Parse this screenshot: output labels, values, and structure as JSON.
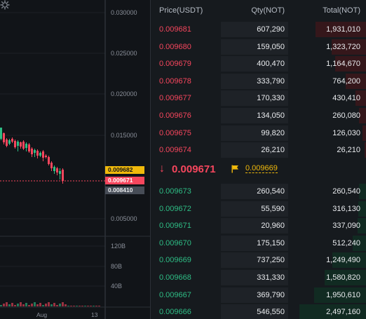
{
  "chart": {
    "price_axis": [
      "0.030000",
      "0.025000",
      "0.020000",
      "0.015000",
      "0.005000"
    ],
    "price_tags": [
      {
        "label": "0.009682",
        "bg": "#f0b90b",
        "fg": "#111418"
      },
      {
        "label": "0.009671",
        "bg": "#f6465d",
        "fg": "#ffffff"
      },
      {
        "label": "0.008410",
        "bg": "#474d57",
        "fg": "#eaecef"
      }
    ],
    "volume_axis": [
      "120B",
      "80B",
      "40B"
    ],
    "date_labels": [
      "Aug",
      "13"
    ],
    "settings_icon": "gear-icon"
  },
  "order_book": {
    "headers": {
      "price": "Price(USDT)",
      "qty": "Qty(NOT)",
      "total": "Total(NOT)"
    },
    "asks": [
      {
        "price": "0.009681",
        "qty": "607,290",
        "total": "1,931,010",
        "depth": 0.38
      },
      {
        "price": "0.009680",
        "qty": "159,050",
        "total": "1,323,720",
        "depth": 0.26
      },
      {
        "price": "0.009679",
        "qty": "400,470",
        "total": "1,164,670",
        "depth": 0.23
      },
      {
        "price": "0.009678",
        "qty": "333,790",
        "total": "764,200",
        "depth": 0.15
      },
      {
        "price": "0.009677",
        "qty": "170,330",
        "total": "430,410",
        "depth": 0.08
      },
      {
        "price": "0.009676",
        "qty": "134,050",
        "total": "260,080",
        "depth": 0.05
      },
      {
        "price": "0.009675",
        "qty": "99,820",
        "total": "126,030",
        "depth": 0.025
      },
      {
        "price": "0.009674",
        "qty": "26,210",
        "total": "26,210",
        "depth": 0.01
      }
    ],
    "mid": {
      "arrow": "↓",
      "last_price": "0.009671",
      "mark_price": "0.009669"
    },
    "bids": [
      {
        "price": "0.009673",
        "qty": "260,540",
        "total": "260,540",
        "depth": 0.05
      },
      {
        "price": "0.009672",
        "qty": "55,590",
        "total": "316,130",
        "depth": 0.06
      },
      {
        "price": "0.009671",
        "qty": "20,960",
        "total": "337,090",
        "depth": 0.065
      },
      {
        "price": "0.009670",
        "qty": "175,150",
        "total": "512,240",
        "depth": 0.1
      },
      {
        "price": "0.009669",
        "qty": "737,250",
        "total": "1,249,490",
        "depth": 0.25
      },
      {
        "price": "0.009668",
        "qty": "331,330",
        "total": "1,580,820",
        "depth": 0.31
      },
      {
        "price": "0.009667",
        "qty": "369,790",
        "total": "1,950,610",
        "depth": 0.39
      },
      {
        "price": "0.009666",
        "qty": "546,550",
        "total": "2,497,160",
        "depth": 0.5
      }
    ]
  }
}
